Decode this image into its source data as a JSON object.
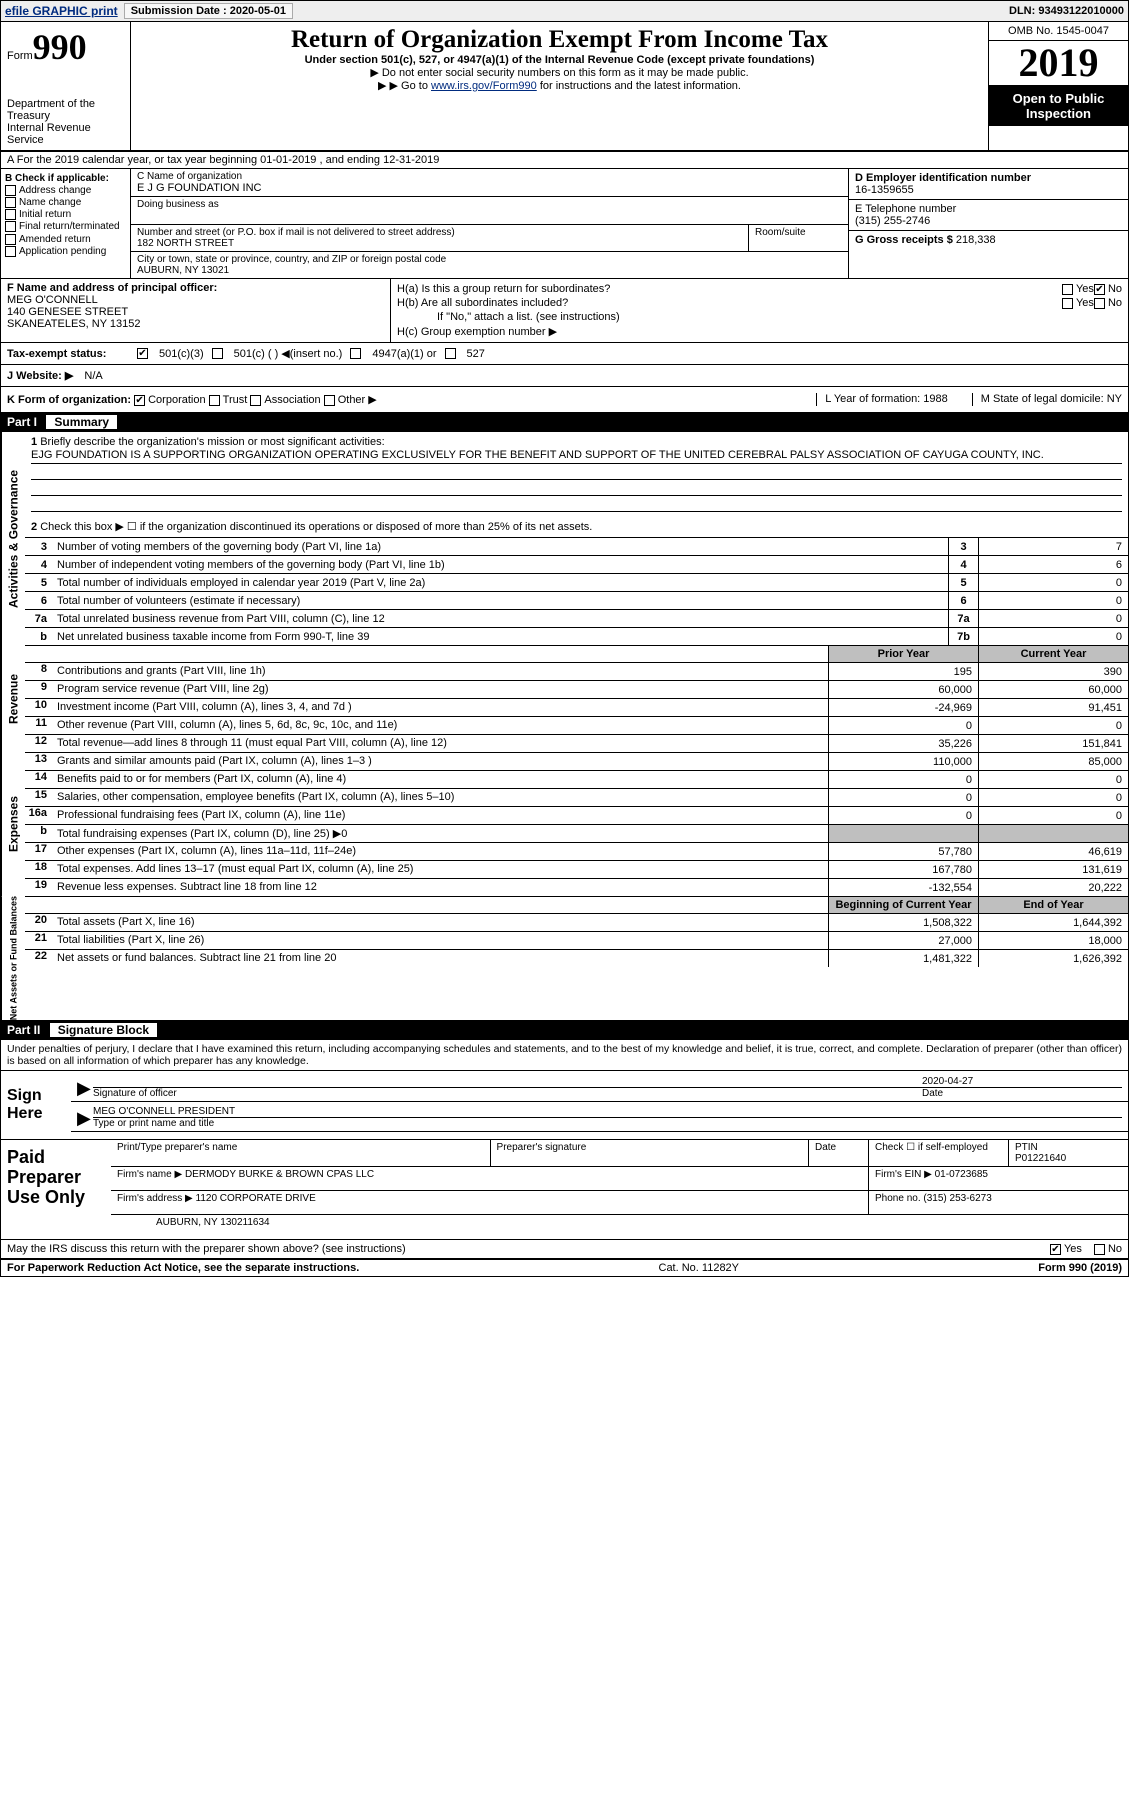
{
  "topbar": {
    "efile": "efile GRAPHIC print",
    "subm_label": "Submission Date : 2020-05-01",
    "dln": "DLN: 93493122010000"
  },
  "header": {
    "form_word": "Form",
    "form_num": "990",
    "dept": "Department of the Treasury\nInternal Revenue Service",
    "title": "Return of Organization Exempt From Income Tax",
    "sub": "Under section 501(c), 527, or 4947(a)(1) of the Internal Revenue Code (except private foundations)",
    "line1": "Do not enter social security numbers on this form as it may be made public.",
    "line2_pre": "Go to ",
    "line2_link": "www.irs.gov/Form990",
    "line2_post": " for instructions and the latest information.",
    "omb": "OMB No. 1545-0047",
    "year": "2019",
    "open": "Open to Public Inspection"
  },
  "rowA": "A For the 2019 calendar year, or tax year beginning 01-01-2019   , and ending 12-31-2019",
  "boxB": {
    "header": "B Check if applicable:",
    "opts": [
      "Address change",
      "Name change",
      "Initial return",
      "Final return/terminated",
      "Amended return",
      "Application pending"
    ]
  },
  "boxC": {
    "name_label": "C Name of organization",
    "name": "E J G FOUNDATION INC",
    "dba_label": "Doing business as",
    "addr_label": "Number and street (or P.O. box if mail is not delivered to street address)",
    "addr": "182 NORTH STREET",
    "room_label": "Room/suite",
    "city_label": "City or town, state or province, country, and ZIP or foreign postal code",
    "city": "AUBURN, NY  13021"
  },
  "boxD": {
    "label": "D Employer identification number",
    "val": "16-1359655"
  },
  "boxE": {
    "label": "E Telephone number",
    "val": "(315) 255-2746"
  },
  "boxG": {
    "label": "G Gross receipts $ ",
    "val": "218,338"
  },
  "boxF": {
    "label": "F  Name and address of principal officer:",
    "name": "MEG O'CONNELL",
    "street": "140 GENESEE STREET",
    "city": "SKANEATELES, NY  13152"
  },
  "boxH": {
    "a": "H(a)  Is this a group return for subordinates?",
    "b": "H(b)  Are all subordinates included?",
    "b2": "If \"No,\" attach a list. (see instructions)",
    "c": "H(c)  Group exemption number ▶",
    "yes": "Yes",
    "no": "No"
  },
  "taxex": {
    "label": "Tax-exempt status:",
    "o1": "501(c)(3)",
    "o2": "501(c) (  ) ◀(insert no.)",
    "o3": "4947(a)(1) or",
    "o4": "527"
  },
  "website": {
    "label": "J   Website: ▶",
    "val": "N/A"
  },
  "rowK": {
    "k": "K Form of organization:",
    "opts": {
      "corp": "Corporation",
      "trust": "Trust",
      "assoc": "Association",
      "other": "Other ▶"
    },
    "l": "L Year of formation: 1988",
    "m": "M State of legal domicile: NY"
  },
  "part1": {
    "hdr": "Part I",
    "title": "Summary",
    "tabs": [
      "Activities & Governance",
      "Revenue",
      "Expenses",
      "Net Assets or Fund Balances"
    ],
    "l1": "Briefly describe the organization's mission or most significant activities:",
    "mission": "EJG FOUNDATION IS A SUPPORTING ORGANIZATION OPERATING EXCLUSIVELY FOR THE BENEFIT AND SUPPORT OF THE UNITED CEREBRAL PALSY ASSOCIATION OF CAYUGA COUNTY, INC.",
    "l2": "Check this box ▶ ☐  if the organization discontinued its operations or disposed of more than 25% of its net assets.",
    "rows_gov": [
      {
        "n": "3",
        "d": "Number of voting members of the governing body (Part VI, line 1a)",
        "b": "3",
        "v": "7"
      },
      {
        "n": "4",
        "d": "Number of independent voting members of the governing body (Part VI, line 1b)",
        "b": "4",
        "v": "6"
      },
      {
        "n": "5",
        "d": "Total number of individuals employed in calendar year 2019 (Part V, line 2a)",
        "b": "5",
        "v": "0"
      },
      {
        "n": "6",
        "d": "Total number of volunteers (estimate if necessary)",
        "b": "6",
        "v": "0"
      },
      {
        "n": "7a",
        "d": "Total unrelated business revenue from Part VIII, column (C), line 12",
        "b": "7a",
        "v": "0"
      },
      {
        "n": "b",
        "d": "Net unrelated business taxable income from Form 990-T, line 39",
        "b": "7b",
        "v": "0"
      }
    ],
    "col_hdr": {
      "prior": "Prior Year",
      "cur": "Current Year"
    },
    "rows_rev": [
      {
        "n": "8",
        "d": "Contributions and grants (Part VIII, line 1h)",
        "p": "195",
        "c": "390"
      },
      {
        "n": "9",
        "d": "Program service revenue (Part VIII, line 2g)",
        "p": "60,000",
        "c": "60,000"
      },
      {
        "n": "10",
        "d": "Investment income (Part VIII, column (A), lines 3, 4, and 7d )",
        "p": "-24,969",
        "c": "91,451"
      },
      {
        "n": "11",
        "d": "Other revenue (Part VIII, column (A), lines 5, 6d, 8c, 9c, 10c, and 11e)",
        "p": "0",
        "c": "0"
      },
      {
        "n": "12",
        "d": "Total revenue—add lines 8 through 11 (must equal Part VIII, column (A), line 12)",
        "p": "35,226",
        "c": "151,841"
      }
    ],
    "rows_exp": [
      {
        "n": "13",
        "d": "Grants and similar amounts paid (Part IX, column (A), lines 1–3 )",
        "p": "110,000",
        "c": "85,000"
      },
      {
        "n": "14",
        "d": "Benefits paid to or for members (Part IX, column (A), line 4)",
        "p": "0",
        "c": "0"
      },
      {
        "n": "15",
        "d": "Salaries, other compensation, employee benefits (Part IX, column (A), lines 5–10)",
        "p": "0",
        "c": "0"
      },
      {
        "n": "16a",
        "d": "Professional fundraising fees (Part IX, column (A), line 11e)",
        "p": "0",
        "c": "0"
      },
      {
        "n": "b",
        "d": "Total fundraising expenses (Part IX, column (D), line 25) ▶0",
        "p": "",
        "c": "",
        "shade": true
      },
      {
        "n": "17",
        "d": "Other expenses (Part IX, column (A), lines 11a–11d, 11f–24e)",
        "p": "57,780",
        "c": "46,619"
      },
      {
        "n": "18",
        "d": "Total expenses. Add lines 13–17 (must equal Part IX, column (A), line 25)",
        "p": "167,780",
        "c": "131,619"
      },
      {
        "n": "19",
        "d": "Revenue less expenses. Subtract line 18 from line 12",
        "p": "-132,554",
        "c": "20,222"
      }
    ],
    "col_hdr2": {
      "beg": "Beginning of Current Year",
      "end": "End of Year"
    },
    "rows_net": [
      {
        "n": "20",
        "d": "Total assets (Part X, line 16)",
        "p": "1,508,322",
        "c": "1,644,392"
      },
      {
        "n": "21",
        "d": "Total liabilities (Part X, line 26)",
        "p": "27,000",
        "c": "18,000"
      },
      {
        "n": "22",
        "d": "Net assets or fund balances. Subtract line 21 from line 20",
        "p": "1,481,322",
        "c": "1,626,392"
      }
    ]
  },
  "part2": {
    "hdr": "Part II",
    "title": "Signature Block",
    "decl": "Under penalties of perjury, I declare that I have examined this return, including accompanying schedules and statements, and to the best of my knowledge and belief, it is true, correct, and complete. Declaration of preparer (other than officer) is based on all information of which preparer has any knowledge.",
    "sign_here": "Sign Here",
    "sig_of_officer": "Signature of officer",
    "date_label": "Date",
    "sig_date": "2020-04-27",
    "officer": "MEG O'CONNELL  PRESIDENT",
    "officer_label": "Type or print name and title",
    "paid": "Paid Preparer Use Only",
    "prep_name_label": "Print/Type preparer's name",
    "prep_sig_label": "Preparer's signature",
    "prep_date": "Date",
    "check_if": "Check ☐ if self-employed",
    "ptin_label": "PTIN",
    "ptin": "P01221640",
    "firm_name_label": "Firm's name    ▶",
    "firm_name": "DERMODY BURKE & BROWN CPAS LLC",
    "firm_ein_label": "Firm's EIN ▶",
    "firm_ein": "01-0723685",
    "firm_addr_label": "Firm's address ▶",
    "firm_addr": "1120 CORPORATE DRIVE",
    "firm_city": "AUBURN, NY  130211634",
    "phone_label": "Phone no.",
    "phone": "(315) 253-6273",
    "discuss": "May the IRS discuss this return with the preparer shown above? (see instructions)",
    "yes": "Yes",
    "no": "No"
  },
  "footer": {
    "left": "For Paperwork Reduction Act Notice, see the separate instructions.",
    "mid": "Cat. No. 11282Y",
    "right": "Form 990 (2019)"
  }
}
